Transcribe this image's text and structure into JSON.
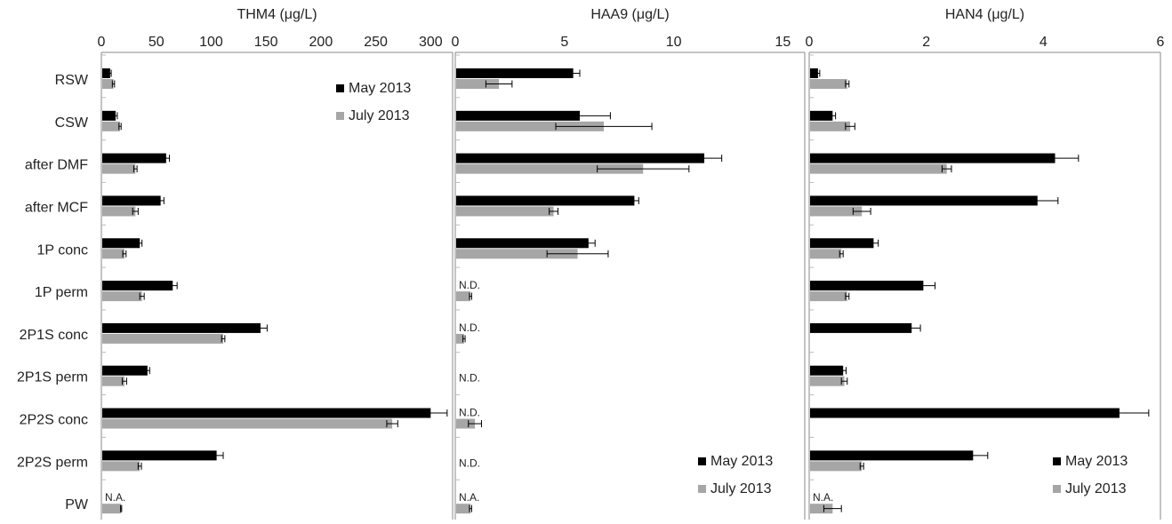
{
  "chart_data": [
    {
      "type": "bar",
      "orientation": "horizontal",
      "title": "THM4 (μg/L)",
      "categories": [
        "RSW",
        "CSW",
        "after DMF",
        "after MCF",
        "1P conc",
        "1P perm",
        "2P1S conc",
        "2P1S perm",
        "2P2S conc",
        "2P2S perm",
        "PW"
      ],
      "xlim": [
        0,
        320
      ],
      "ticks": [
        0,
        50,
        100,
        150,
        200,
        250,
        300
      ],
      "series": [
        {
          "name": "May 2013",
          "color": "#000000",
          "values": [
            8,
            13,
            59,
            54,
            35,
            65,
            145,
            42,
            300,
            105,
            null
          ],
          "errors": [
            1,
            1.5,
            3,
            3,
            2,
            4,
            6,
            2,
            15,
            6,
            null
          ]
        },
        {
          "name": "July 2013",
          "color": "#a6a6a6",
          "values": [
            11,
            17,
            31,
            31,
            21,
            37,
            111,
            21,
            265,
            35,
            18
          ],
          "errors": [
            1,
            1,
            1.5,
            2.5,
            1.5,
            2,
            1.5,
            2,
            5,
            1.5,
            0.5
          ]
        }
      ],
      "point_labels": [
        {
          "category": "PW",
          "series": "May 2013",
          "text": "N.A."
        }
      ],
      "legend": {
        "position": "top-right",
        "entries": [
          "May 2013",
          "July 2013"
        ]
      }
    },
    {
      "type": "bar",
      "orientation": "horizontal",
      "title": "HAA9 (μg/L)",
      "categories": [
        "RSW",
        "CSW",
        "after DMF",
        "after MCF",
        "1P conc",
        "1P perm",
        "2P1S conc",
        "2P1S perm",
        "2P2S conc",
        "2P2S perm",
        "PW"
      ],
      "xlim": [
        0,
        16
      ],
      "ticks": [
        0,
        5,
        10,
        15
      ],
      "series": [
        {
          "name": "May 2013",
          "color": "#000000",
          "values": [
            5.4,
            5.7,
            11.4,
            8.2,
            6.1,
            null,
            null,
            null,
            null,
            null,
            null
          ],
          "errors": [
            0.3,
            1.4,
            0.8,
            0.2,
            0.3,
            null,
            null,
            null,
            null,
            null,
            null
          ]
        },
        {
          "name": "July 2013",
          "color": "#a6a6a6",
          "values": [
            2.0,
            6.8,
            8.6,
            4.5,
            5.6,
            0.7,
            0.4,
            null,
            0.9,
            null,
            0.7
          ],
          "errors": [
            0.6,
            2.2,
            2.1,
            0.2,
            1.4,
            0.05,
            0.05,
            null,
            0.3,
            null,
            0.05
          ]
        }
      ],
      "point_labels": [
        {
          "category": "1P perm",
          "series": "May 2013",
          "text": "N.D."
        },
        {
          "category": "2P1S conc",
          "series": "May 2013",
          "text": "N.D."
        },
        {
          "category": "2P1S perm",
          "series": "both",
          "text": "N.D."
        },
        {
          "category": "2P2S conc",
          "series": "May 2013",
          "text": "N.D."
        },
        {
          "category": "2P2S perm",
          "series": "both",
          "text": "N.D."
        },
        {
          "category": "PW",
          "series": "May 2013",
          "text": "N.A."
        }
      ],
      "legend": {
        "position": "bottom-right",
        "entries": [
          "May 2013",
          "July 2013"
        ]
      }
    },
    {
      "type": "bar",
      "orientation": "horizontal",
      "title": "HAN4 (μg/L)",
      "categories": [
        "RSW",
        "CSW",
        "after DMF",
        "after MCF",
        "1P conc",
        "1P perm",
        "2P1S conc",
        "2P1S perm",
        "2P2S conc",
        "2P2S perm",
        "PW"
      ],
      "xlim": [
        0,
        6
      ],
      "ticks": [
        0,
        2,
        4,
        6
      ],
      "series": [
        {
          "name": "May 2013",
          "color": "#000000",
          "values": [
            0.15,
            0.4,
            4.2,
            3.9,
            1.1,
            1.95,
            1.75,
            0.58,
            5.3,
            2.8,
            null
          ],
          "errors": [
            0.03,
            0.05,
            0.4,
            0.35,
            0.08,
            0.2,
            0.15,
            0.05,
            0.5,
            0.25,
            null
          ]
        },
        {
          "name": "July 2013",
          "color": "#a6a6a6",
          "values": [
            0.65,
            0.7,
            2.35,
            0.9,
            0.55,
            0.65,
            null,
            0.6,
            null,
            0.9,
            0.4
          ],
          "errors": [
            0.03,
            0.08,
            0.08,
            0.15,
            0.03,
            0.03,
            null,
            0.05,
            null,
            0.03,
            0.15
          ]
        }
      ],
      "point_labels": [
        {
          "category": "PW",
          "series": "May 2013",
          "text": "N.A."
        }
      ],
      "legend": {
        "position": "bottom-right",
        "entries": [
          "May 2013",
          "July 2013"
        ]
      }
    }
  ]
}
